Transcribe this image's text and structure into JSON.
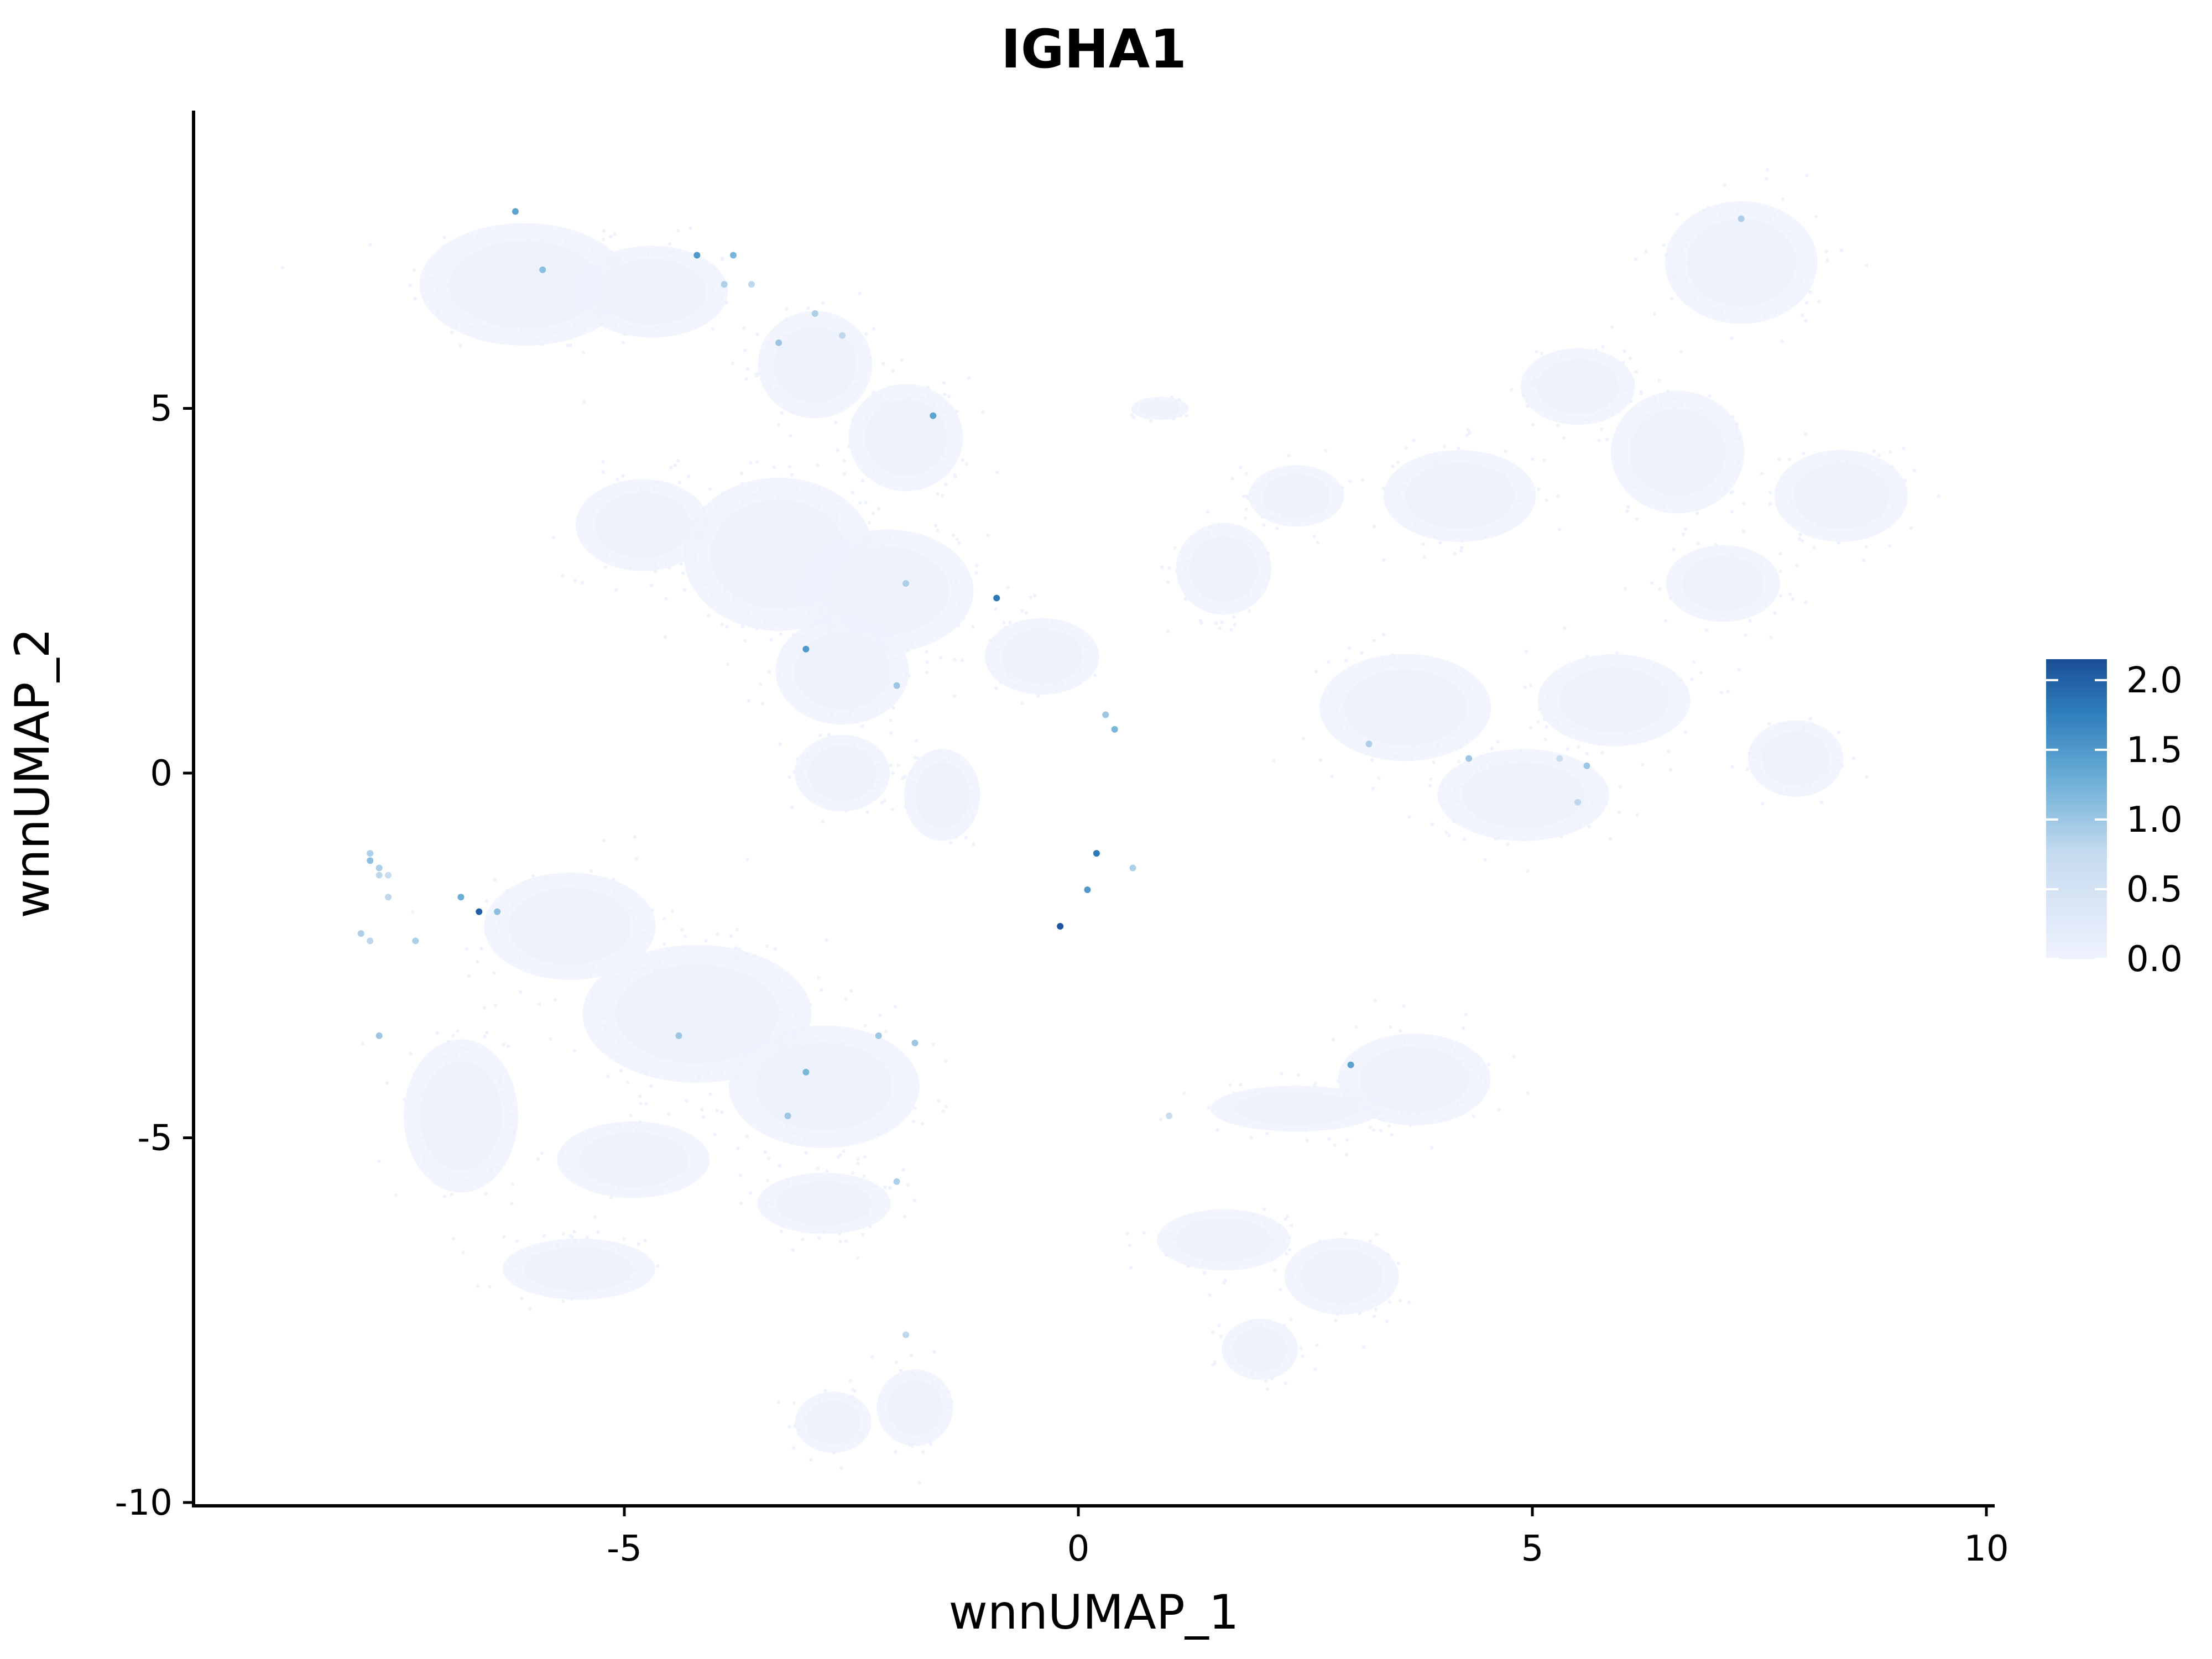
{
  "chart_data": {
    "type": "scatter",
    "title": "IGHA1",
    "xlabel": "wnnUMAP_1",
    "ylabel": "wnnUMAP_2",
    "xlim": [
      -9.8,
      10
    ],
    "ylim": [
      -10.1,
      9.1
    ],
    "x_ticks": [
      -5,
      0,
      5,
      10
    ],
    "x_tick_labels": [
      "-5",
      "0",
      "5",
      "10"
    ],
    "y_ticks": [
      -10,
      -5,
      0,
      5
    ],
    "y_tick_labels": [
      "-10",
      "-5",
      "0",
      "5"
    ],
    "grid": false,
    "legend": {
      "placement": "right",
      "type": "colorbar",
      "min": 0,
      "max": 2.15,
      "ticks": [
        0.0,
        0.5,
        1.0,
        1.5,
        2.0
      ],
      "tick_labels": [
        "0.0",
        "0.5",
        "1.0",
        "1.5",
        "2.0"
      ],
      "color_low": "#eef2fd",
      "color_high": "#1a4e96"
    },
    "background_cells": {
      "color": "#eef2fd",
      "expression": 0,
      "clusters": [
        {
          "x": -6.1,
          "y": 6.7,
          "sx": 1.1,
          "sy": 0.8
        },
        {
          "x": -4.7,
          "y": 6.6,
          "sx": 0.8,
          "sy": 0.6
        },
        {
          "x": -2.9,
          "y": 5.6,
          "sx": 0.6,
          "sy": 0.7
        },
        {
          "x": -1.9,
          "y": 4.6,
          "sx": 0.6,
          "sy": 0.7
        },
        {
          "x": -3.3,
          "y": 3.0,
          "sx": 1.0,
          "sy": 1.0
        },
        {
          "x": -2.1,
          "y": 2.5,
          "sx": 0.9,
          "sy": 0.8
        },
        {
          "x": -4.8,
          "y": 3.4,
          "sx": 0.7,
          "sy": 0.6
        },
        {
          "x": -2.6,
          "y": 1.4,
          "sx": 0.7,
          "sy": 0.7
        },
        {
          "x": -2.6,
          "y": 0.0,
          "sx": 0.5,
          "sy": 0.5
        },
        {
          "x": -1.5,
          "y": -0.3,
          "sx": 0.4,
          "sy": 0.6
        },
        {
          "x": -0.4,
          "y": 1.6,
          "sx": 0.6,
          "sy": 0.5
        },
        {
          "x": 0.9,
          "y": 5.0,
          "sx": 0.3,
          "sy": 0.15
        },
        {
          "x": 1.6,
          "y": 2.8,
          "sx": 0.5,
          "sy": 0.6
        },
        {
          "x": 2.4,
          "y": 3.8,
          "sx": 0.5,
          "sy": 0.4
        },
        {
          "x": 4.2,
          "y": 3.8,
          "sx": 0.8,
          "sy": 0.6
        },
        {
          "x": 5.5,
          "y": 5.3,
          "sx": 0.6,
          "sy": 0.5
        },
        {
          "x": 7.3,
          "y": 7.0,
          "sx": 0.8,
          "sy": 0.8
        },
        {
          "x": 8.4,
          "y": 3.8,
          "sx": 0.7,
          "sy": 0.6
        },
        {
          "x": 7.1,
          "y": 2.6,
          "sx": 0.6,
          "sy": 0.5
        },
        {
          "x": 6.6,
          "y": 4.4,
          "sx": 0.7,
          "sy": 0.8
        },
        {
          "x": 5.9,
          "y": 1.0,
          "sx": 0.8,
          "sy": 0.6
        },
        {
          "x": 4.9,
          "y": -0.3,
          "sx": 0.9,
          "sy": 0.6
        },
        {
          "x": 3.6,
          "y": 0.9,
          "sx": 0.9,
          "sy": 0.7
        },
        {
          "x": 7.9,
          "y": 0.2,
          "sx": 0.5,
          "sy": 0.5
        },
        {
          "x": -5.6,
          "y": -2.1,
          "sx": 0.9,
          "sy": 0.7
        },
        {
          "x": -4.2,
          "y": -3.3,
          "sx": 1.2,
          "sy": 0.9
        },
        {
          "x": -2.8,
          "y": -4.3,
          "sx": 1.0,
          "sy": 0.8
        },
        {
          "x": -4.9,
          "y": -5.3,
          "sx": 0.8,
          "sy": 0.5
        },
        {
          "x": -2.8,
          "y": -5.9,
          "sx": 0.7,
          "sy": 0.4
        },
        {
          "x": -6.8,
          "y": -4.7,
          "sx": 0.6,
          "sy": 1.0
        },
        {
          "x": -5.5,
          "y": -6.8,
          "sx": 0.8,
          "sy": 0.4
        },
        {
          "x": -2.7,
          "y": -8.9,
          "sx": 0.4,
          "sy": 0.4
        },
        {
          "x": -1.8,
          "y": -8.7,
          "sx": 0.4,
          "sy": 0.5
        },
        {
          "x": 3.7,
          "y": -4.2,
          "sx": 0.8,
          "sy": 0.6
        },
        {
          "x": 2.4,
          "y": -4.6,
          "sx": 0.9,
          "sy": 0.3
        },
        {
          "x": 1.6,
          "y": -6.4,
          "sx": 0.7,
          "sy": 0.4
        },
        {
          "x": 2.9,
          "y": -6.9,
          "sx": 0.6,
          "sy": 0.5
        },
        {
          "x": 2.0,
          "y": -7.9,
          "sx": 0.4,
          "sy": 0.4
        }
      ]
    },
    "points": [
      {
        "x": -6.2,
        "y": 7.7,
        "value": 1.4
      },
      {
        "x": -5.9,
        "y": 6.9,
        "value": 1.1
      },
      {
        "x": -4.2,
        "y": 7.1,
        "value": 1.5
      },
      {
        "x": -3.8,
        "y": 7.1,
        "value": 1.2
      },
      {
        "x": -3.9,
        "y": 6.7,
        "value": 0.9
      },
      {
        "x": -3.6,
        "y": 6.7,
        "value": 0.8
      },
      {
        "x": -2.9,
        "y": 6.3,
        "value": 0.9
      },
      {
        "x": -2.6,
        "y": 6.0,
        "value": 0.8
      },
      {
        "x": -3.3,
        "y": 5.9,
        "value": 1.0
      },
      {
        "x": -1.6,
        "y": 4.9,
        "value": 1.4
      },
      {
        "x": -1.9,
        "y": 2.6,
        "value": 0.9
      },
      {
        "x": -0.9,
        "y": 2.4,
        "value": 1.8
      },
      {
        "x": -3.0,
        "y": 1.7,
        "value": 1.5
      },
      {
        "x": -2.0,
        "y": 1.2,
        "value": 1.0
      },
      {
        "x": 0.3,
        "y": 0.8,
        "value": 1.0
      },
      {
        "x": 0.4,
        "y": 0.6,
        "value": 1.2
      },
      {
        "x": 0.2,
        "y": -1.1,
        "value": 1.8
      },
      {
        "x": 0.6,
        "y": -1.3,
        "value": 0.9
      },
      {
        "x": 0.1,
        "y": -1.6,
        "value": 1.5
      },
      {
        "x": -0.2,
        "y": -2.1,
        "value": 2.1
      },
      {
        "x": 3.2,
        "y": 0.4,
        "value": 0.9
      },
      {
        "x": 4.3,
        "y": 0.2,
        "value": 1.0
      },
      {
        "x": 5.3,
        "y": 0.2,
        "value": 0.7
      },
      {
        "x": 5.6,
        "y": 0.1,
        "value": 1.0
      },
      {
        "x": 5.5,
        "y": -0.4,
        "value": 0.8
      },
      {
        "x": 7.3,
        "y": 7.6,
        "value": 0.9
      },
      {
        "x": -7.8,
        "y": -1.1,
        "value": 0.9
      },
      {
        "x": -7.8,
        "y": -1.2,
        "value": 1.1
      },
      {
        "x": -7.7,
        "y": -1.3,
        "value": 0.9
      },
      {
        "x": -7.7,
        "y": -1.4,
        "value": 0.8
      },
      {
        "x": -7.6,
        "y": -1.4,
        "value": 0.7
      },
      {
        "x": -7.6,
        "y": -1.7,
        "value": 0.8
      },
      {
        "x": -7.9,
        "y": -2.2,
        "value": 0.9
      },
      {
        "x": -7.8,
        "y": -2.3,
        "value": 0.8
      },
      {
        "x": -7.3,
        "y": -2.3,
        "value": 0.9
      },
      {
        "x": -6.8,
        "y": -1.7,
        "value": 1.3
      },
      {
        "x": -6.6,
        "y": -1.9,
        "value": 2.0
      },
      {
        "x": -6.4,
        "y": -1.9,
        "value": 1.1
      },
      {
        "x": -7.7,
        "y": -3.6,
        "value": 1.0
      },
      {
        "x": -4.4,
        "y": -3.6,
        "value": 1.0
      },
      {
        "x": -3.0,
        "y": -4.1,
        "value": 1.2
      },
      {
        "x": -3.2,
        "y": -4.7,
        "value": 1.0
      },
      {
        "x": -2.2,
        "y": -3.6,
        "value": 1.0
      },
      {
        "x": -1.8,
        "y": -3.7,
        "value": 1.0
      },
      {
        "x": -2.0,
        "y": -5.6,
        "value": 0.9
      },
      {
        "x": -1.9,
        "y": -7.7,
        "value": 0.8
      },
      {
        "x": 1.0,
        "y": -4.7,
        "value": 0.7
      },
      {
        "x": 3.0,
        "y": -4.0,
        "value": 1.4
      }
    ]
  }
}
